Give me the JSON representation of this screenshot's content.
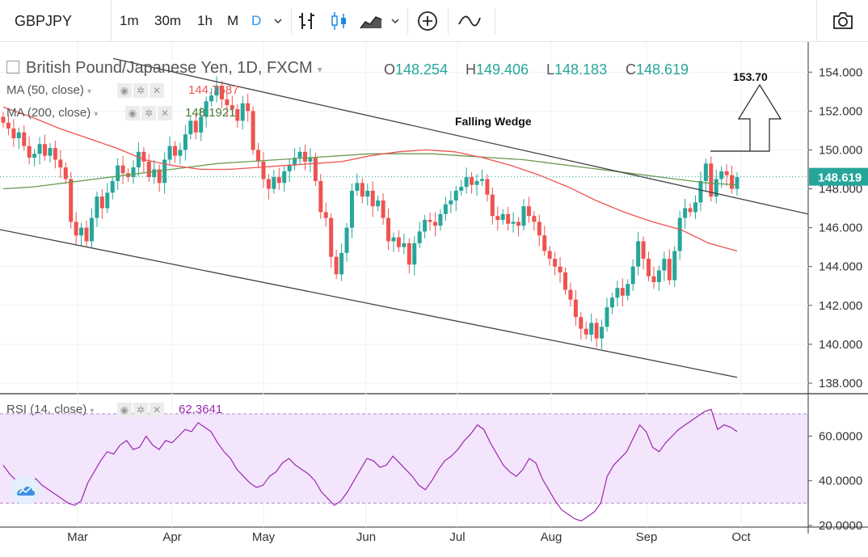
{
  "toolbar": {
    "symbol": "GBPJPY",
    "timeframes": [
      "1m",
      "30m",
      "1h",
      "M",
      "D"
    ],
    "active_timeframe": "D",
    "icons": [
      "chevron-down-icon",
      "bar-style-icon",
      "candle-style-icon",
      "area-style-icon",
      "add-compare-icon",
      "indicator-icon",
      "camera-icon"
    ]
  },
  "legend": {
    "title": "British Pound/Japanese Yen, 1D, FXCM",
    "open_label": "O",
    "open": "148.254",
    "high_label": "H",
    "high": "149.406",
    "low_label": "L",
    "low": "148.183",
    "close_label": "C",
    "close": "148.619"
  },
  "indicators": {
    "ma50": {
      "label": "MA (50, close)",
      "value": "144.7587",
      "color": "#ef5350"
    },
    "ma200": {
      "label": "MA (200, close)",
      "value": "148.1921",
      "color": "#6a9b52"
    },
    "rsi": {
      "label": "RSI (14, close)",
      "value": "62.3641",
      "color": "#9c27b0"
    }
  },
  "colors": {
    "up": "#26a69a",
    "down": "#ef5350",
    "price_tag": "#26a69a",
    "rsi_band": "#f3e5fb"
  },
  "chart_data": {
    "type": "candlestick",
    "annotations": {
      "pattern_label": "Falling Wedge",
      "target_label": "153.70"
    },
    "price_axis": {
      "ticks": [
        "154.000",
        "152.000",
        "150.000",
        "148.000",
        "146.000",
        "144.000",
        "142.000",
        "140.000",
        "138.000"
      ],
      "current_price": "148.619",
      "ylim": [
        137.5,
        155.3
      ]
    },
    "rsi_axis": {
      "ticks": [
        "60.0000",
        "40.0000",
        "20.0000"
      ],
      "band": [
        30,
        70
      ],
      "ylim": [
        20,
        75
      ]
    },
    "x_axis": {
      "labels": [
        "Mar",
        "Apr",
        "May",
        "Jun",
        "Jul",
        "Aug",
        "Sep",
        "Oct"
      ]
    },
    "closes": [
      151.4,
      151.1,
      150.6,
      150.9,
      150.2,
      149.6,
      149.8,
      150.3,
      149.7,
      150.1,
      149.5,
      149.1,
      148.5,
      146.3,
      145.6,
      146.0,
      145.3,
      146.5,
      147.6,
      147.0,
      147.8,
      148.4,
      149.2,
      148.8,
      148.6,
      149.1,
      149.9,
      149.4,
      148.6,
      149.0,
      148.3,
      149.5,
      150.2,
      149.7,
      150.0,
      150.8,
      151.5,
      150.9,
      151.7,
      152.5,
      152.8,
      153.3,
      152.6,
      152.3,
      152.1,
      151.5,
      152.4,
      152.0,
      150.0,
      149.4,
      148.5,
      148.0,
      148.6,
      148.3,
      148.9,
      149.2,
      149.6,
      149.9,
      149.4,
      149.6,
      148.4,
      146.8,
      146.5,
      144.5,
      143.6,
      144.7,
      146.0,
      147.9,
      148.3,
      147.6,
      147.9,
      147.1,
      147.4,
      146.5,
      145.3,
      145.5,
      145.0,
      145.2,
      144.1,
      145.2,
      145.8,
      146.4,
      146.3,
      146.1,
      146.7,
      147.2,
      147.4,
      147.9,
      148.1,
      148.6,
      148.2,
      148.4,
      148.5,
      147.7,
      146.6,
      146.4,
      146.7,
      146.2,
      146.3,
      146.1,
      147.1,
      146.6,
      146.3,
      145.6,
      144.8,
      144.4,
      144.0,
      143.7,
      142.8,
      142.3,
      141.4,
      140.8,
      140.5,
      141.1,
      140.3,
      140.9,
      141.9,
      142.4,
      142.9,
      142.5,
      143.1,
      144.0,
      145.3,
      144.4,
      143.5,
      143.2,
      143.8,
      144.4,
      143.3,
      144.8,
      146.5,
      147.0,
      146.8,
      147.3,
      148.4,
      149.3,
      147.6,
      148.5,
      148.9,
      148.7,
      148.0,
      148.6
    ],
    "ma50": [
      152.2,
      151.7,
      151.1,
      150.6,
      150.1,
      149.5,
      149.2,
      149.0,
      149.0,
      149.1,
      149.2,
      149.3,
      149.4,
      149.7,
      149.9,
      150.0,
      149.9,
      149.6,
      149.2,
      148.7,
      148.1,
      147.4,
      146.8,
      146.3,
      145.9,
      145.2,
      144.8
    ],
    "ma200": [
      148.0,
      148.1,
      148.3,
      148.5,
      148.7,
      148.9,
      149.1,
      149.3,
      149.4,
      149.5,
      149.6,
      149.7,
      149.8,
      149.8,
      149.8,
      149.7,
      149.6,
      149.5,
      149.3,
      149.1,
      148.9,
      148.7,
      148.5,
      148.3,
      148.2
    ],
    "rsi": [
      47,
      43,
      40,
      37,
      35,
      41,
      38,
      36,
      34,
      32,
      30,
      29,
      31,
      39,
      44,
      49,
      53,
      52,
      56,
      58,
      54,
      55,
      60,
      56,
      54,
      58,
      57,
      60,
      63,
      62,
      66,
      64,
      62,
      57,
      53,
      50,
      45,
      42,
      39,
      37,
      38,
      42,
      44,
      48,
      50,
      47,
      45,
      43,
      40,
      35,
      32,
      29,
      31,
      35,
      40,
      45,
      50,
      49,
      46,
      47,
      51,
      48,
      45,
      42,
      38,
      36,
      40,
      45,
      49,
      51,
      54,
      58,
      61,
      65,
      63,
      57,
      52,
      47,
      44,
      42,
      45,
      50,
      48,
      41,
      36,
      31,
      27,
      25,
      23,
      22,
      24,
      26,
      30,
      42,
      47,
      50,
      53,
      59,
      65,
      62,
      55,
      53,
      57,
      60,
      63,
      65,
      67,
      69,
      71,
      72,
      63,
      65,
      64,
      62
    ]
  }
}
